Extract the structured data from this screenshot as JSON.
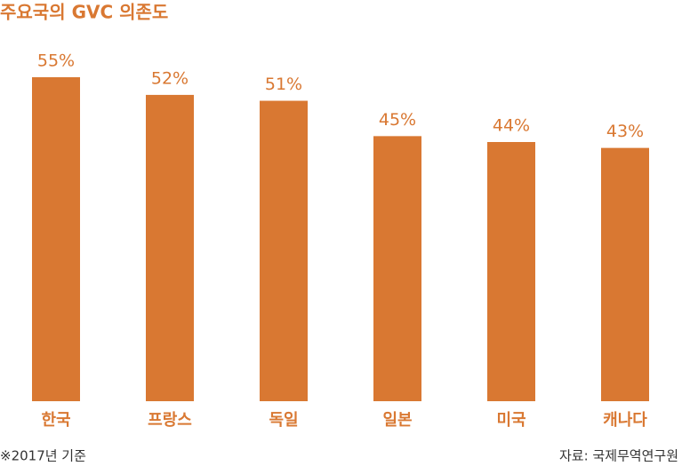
{
  "chart_data": {
    "type": "bar",
    "title": "주요국의 GVC 의존도",
    "categories": [
      "한국",
      "프랑스",
      "독일",
      "일본",
      "미국",
      "캐나다"
    ],
    "values": [
      55,
      52,
      51,
      45,
      44,
      43
    ],
    "value_labels": [
      "55%",
      "52%",
      "51%",
      "45%",
      "44%",
      "43%"
    ],
    "color": "#d97832",
    "note": "※2017년 기준",
    "source": "자료: 국제무역연구원"
  }
}
